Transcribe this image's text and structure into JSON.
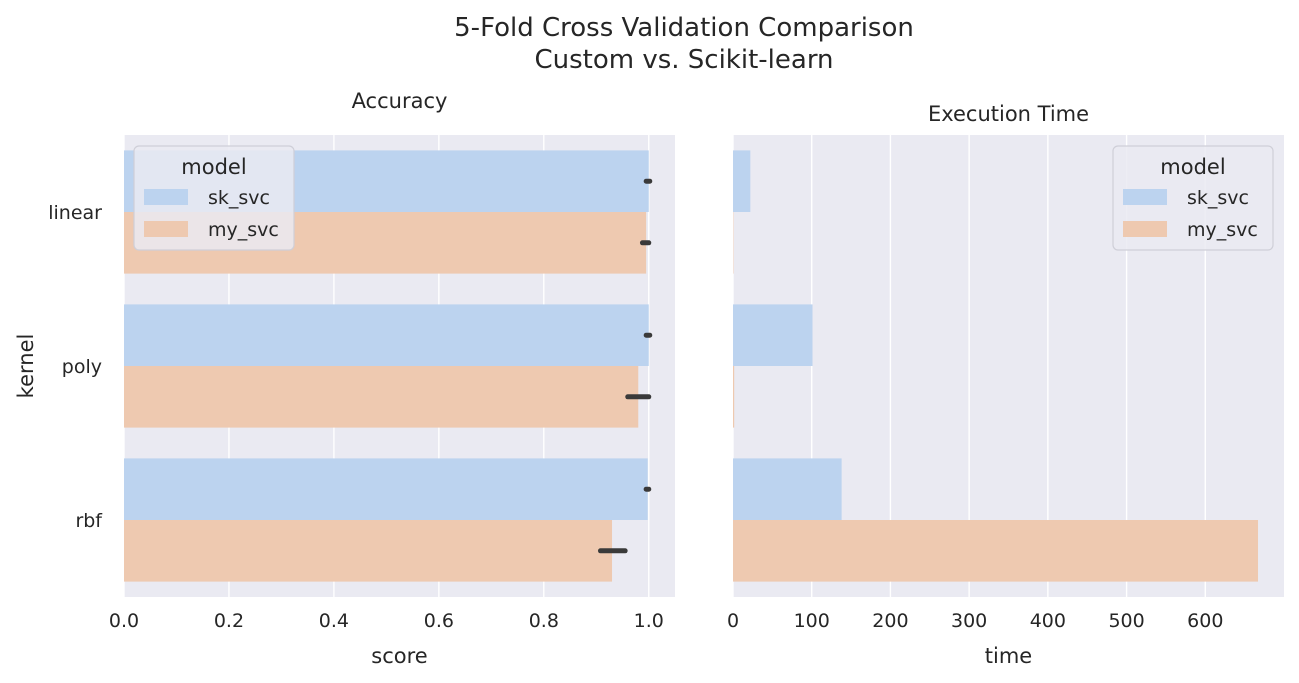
{
  "figure": {
    "title_line1": "5-Fold Cross Validation Comparison",
    "title_line2": "Custom vs. Scikit-learn"
  },
  "colors": {
    "background": "#eaeaf2",
    "grid": "#ffffff",
    "sk_svc": "#bcd3ef",
    "my_svc": "#eec9b0",
    "error_bar": "#3a3a3a"
  },
  "chart_data": [
    {
      "type": "bar",
      "orientation": "horizontal",
      "title": "Accuracy",
      "xlabel": "score",
      "ylabel": "kernel",
      "categories": [
        "linear",
        "poly",
        "rbf"
      ],
      "xlim": [
        0,
        1.05
      ],
      "xticks": [
        "0.0",
        "0.2",
        "0.4",
        "0.6",
        "0.8",
        "1.0"
      ],
      "tick_values": [
        0,
        0.2,
        0.4,
        0.6,
        0.8,
        1.0
      ],
      "grid": true,
      "legend": {
        "title": "model",
        "position": "upper-left"
      },
      "series": [
        {
          "name": "sk_svc",
          "values": [
            1.0,
            1.0,
            0.998
          ],
          "error_low": [
            0.997,
            0.997,
            0.995
          ],
          "error_high": [
            1.0,
            1.0,
            1.0
          ]
        },
        {
          "name": "my_svc",
          "values": [
            0.995,
            0.98,
            0.93
          ],
          "error_low": [
            0.988,
            0.96,
            0.908
          ],
          "error_high": [
            1.0,
            1.0,
            0.955
          ]
        }
      ]
    },
    {
      "type": "bar",
      "orientation": "horizontal",
      "title": "Execution Time",
      "xlabel": "time",
      "ylabel": "",
      "categories": [
        "linear",
        "poly",
        "rbf"
      ],
      "xlim": [
        0,
        700
      ],
      "xticks": [
        "0",
        "100",
        "200",
        "300",
        "400",
        "500",
        "600"
      ],
      "tick_values": [
        0,
        100,
        200,
        300,
        400,
        500,
        600
      ],
      "grid": true,
      "legend": {
        "title": "model",
        "position": "upper-right"
      },
      "series": [
        {
          "name": "sk_svc",
          "values": [
            22,
            101,
            138
          ]
        },
        {
          "name": "my_svc",
          "values": [
            0.5,
            1.5,
            667
          ]
        }
      ]
    }
  ]
}
